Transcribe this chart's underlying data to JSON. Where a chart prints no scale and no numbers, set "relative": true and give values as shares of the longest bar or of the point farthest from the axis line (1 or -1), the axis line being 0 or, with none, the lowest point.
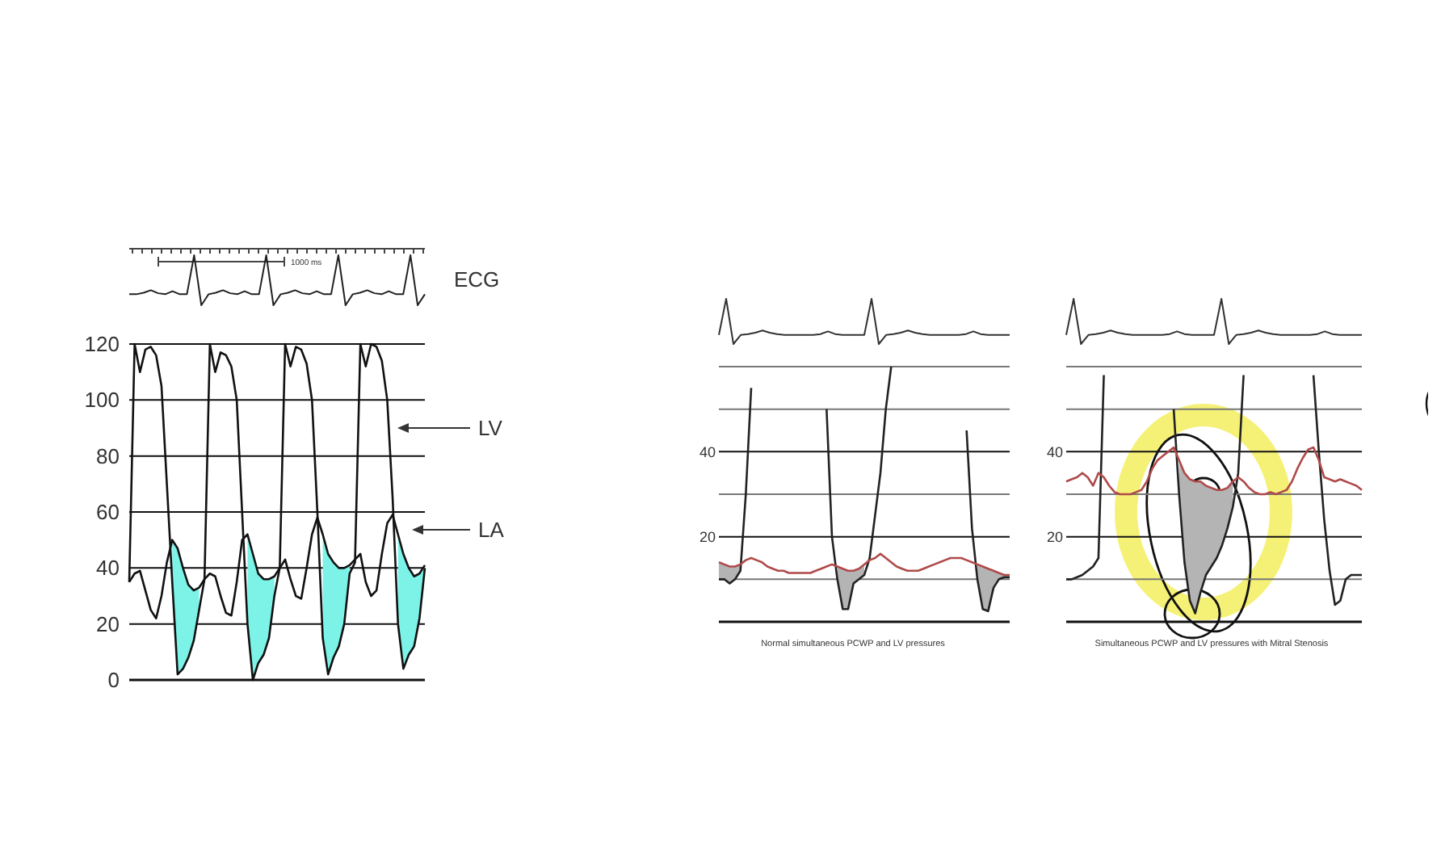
{
  "chart_data": [
    {
      "type": "line",
      "relative": true,
      "annotations": [
        "1000 ms"
      ],
      "categories": [
        null,
        null,
        null,
        null,
        null,
        null,
        null,
        null,
        null,
        null,
        null,
        null,
        null,
        null,
        null,
        null,
        null,
        null,
        null,
        null,
        null,
        null,
        null,
        null,
        null,
        null,
        null,
        null,
        null,
        null,
        null,
        null,
        null,
        null,
        null,
        null,
        null,
        null,
        null,
        null,
        null,
        null
      ],
      "series": [
        {
          "name": "ECG",
          "color": "#222222",
          "values": [
            0.22,
            0.22,
            0.25,
            0.3,
            0.24,
            0.22,
            0.28,
            0.22,
            0.22,
            1,
            0,
            0.22,
            0.25,
            0.3,
            0.24,
            0.22,
            0.28,
            0.22,
            0.22,
            1,
            0,
            0.22,
            0.25,
            0.3,
            0.24,
            0.22,
            0.28,
            0.22,
            0.22,
            1,
            0,
            0.22,
            0.25,
            0.3,
            0.24,
            0.22,
            0.28,
            0.22,
            0.22,
            1,
            0,
            0.22
          ]
        }
      ]
    },
    {
      "type": "line",
      "categories": [
        null,
        null,
        null,
        null,
        null,
        null,
        null,
        null,
        null,
        null,
        null,
        null,
        null,
        null,
        null,
        null,
        null,
        null,
        null,
        null,
        null,
        null,
        null,
        null,
        null,
        null,
        null,
        null,
        null,
        null,
        null,
        null,
        null,
        null,
        null,
        null,
        null,
        null,
        null,
        null,
        null,
        null,
        null,
        null,
        null,
        null,
        null,
        null,
        null,
        null,
        null,
        null,
        null,
        null,
        null,
        null
      ],
      "ylim": [
        0,
        120
      ],
      "yticks": [
        0,
        20,
        40,
        60,
        80,
        100,
        120
      ],
      "grid": "y",
      "series": [
        {
          "name": "LV",
          "color": "#111111",
          "values": [
            35,
            120,
            110,
            118,
            119,
            116,
            105,
            70,
            35,
            2,
            4,
            8,
            14,
            25,
            36,
            120,
            110,
            117,
            116,
            112,
            100,
            60,
            20,
            0,
            6,
            9,
            15,
            30,
            40,
            120,
            112,
            119,
            118,
            113,
            100,
            60,
            15,
            2,
            8,
            12,
            20,
            38,
            42,
            120,
            112,
            120,
            119,
            114,
            100,
            65,
            20,
            4,
            9,
            12,
            22,
            40
          ]
        },
        {
          "name": "LA",
          "color": "#111111",
          "values": [
            35,
            38,
            39,
            32,
            25,
            22,
            30,
            42,
            50,
            47,
            40,
            34,
            32,
            33,
            36,
            38,
            37,
            30,
            24,
            23,
            35,
            50,
            52,
            45,
            38,
            36,
            36,
            37,
            40,
            43,
            36,
            30,
            29,
            40,
            52,
            58,
            52,
            45,
            42,
            40,
            40,
            41,
            43,
            45,
            35,
            30,
            32,
            45,
            56,
            59,
            52,
            45,
            40,
            37,
            38,
            41
          ],
          "upper": [
            null,
            null,
            null,
            null,
            null,
            null,
            null,
            null,
            50,
            47,
            40,
            34,
            32,
            33,
            null,
            null,
            null,
            null,
            null,
            null,
            null,
            null,
            52,
            45,
            38,
            36,
            36,
            37,
            null,
            null,
            null,
            null,
            null,
            null,
            null,
            null,
            52,
            45,
            42,
            40,
            40,
            41,
            null,
            null,
            null,
            null,
            null,
            null,
            null,
            null,
            52,
            45,
            40,
            37,
            38,
            41
          ],
          "lower": [
            null,
            null,
            null,
            null,
            null,
            null,
            null,
            null,
            35,
            2,
            4,
            8,
            14,
            25,
            null,
            null,
            null,
            null,
            null,
            null,
            null,
            null,
            20,
            0,
            6,
            9,
            15,
            30,
            null,
            null,
            null,
            null,
            null,
            null,
            null,
            null,
            15,
            2,
            8,
            12,
            20,
            38,
            null,
            null,
            null,
            null,
            null,
            null,
            null,
            null,
            20,
            4,
            9,
            12,
            22,
            40
          ]
        }
      ]
    },
    {
      "type": "line",
      "relative": true,
      "categories": [
        null,
        null,
        null,
        null,
        null,
        null,
        null,
        null,
        null,
        null,
        null,
        null,
        null,
        null,
        null,
        null,
        null,
        null,
        null,
        null,
        null,
        null,
        null,
        null,
        null,
        null,
        null,
        null,
        null,
        null,
        null,
        null,
        null,
        null,
        null,
        null,
        null,
        null,
        null,
        null,
        null
      ],
      "series": [
        {
          "color": "#333333",
          "values": [
            0.2,
            1,
            0,
            0.2,
            0.22,
            0.25,
            0.3,
            0.25,
            0.22,
            0.2,
            0.2,
            0.2,
            0.2,
            0.2,
            0.22,
            0.28,
            0.22,
            0.2,
            0.2,
            0.2,
            0.2,
            1,
            0,
            0.2,
            0.22,
            0.25,
            0.3,
            0.25,
            0.22,
            0.2,
            0.2,
            0.2,
            0.2,
            0.2,
            0.22,
            0.28,
            0.22,
            0.2,
            0.2,
            0.2,
            0.2
          ]
        }
      ]
    },
    {
      "type": "line",
      "annotations": [
        "Normal simultaneous PCWP and LV pressures"
      ],
      "categories": [
        null,
        null,
        null,
        null,
        null,
        null,
        null,
        null,
        null,
        null,
        null,
        null,
        null,
        null,
        null,
        null,
        null,
        null,
        null,
        null,
        null,
        null,
        null,
        null,
        null,
        null,
        null,
        null,
        null,
        null,
        null,
        null,
        null,
        null,
        null,
        null,
        null,
        null,
        null,
        null,
        null,
        null,
        null,
        null,
        null,
        null,
        null,
        null,
        null,
        null,
        null,
        null,
        null,
        null,
        null
      ],
      "ylim": [
        0,
        60
      ],
      "yticks": [
        {
          "value": 0,
          "label": null
        },
        {
          "value": 10,
          "label": null
        },
        20,
        {
          "value": 30,
          "label": null
        },
        40,
        {
          "value": 50,
          "label": null
        },
        {
          "value": 60,
          "label": null
        }
      ],
      "grid": "y",
      "series": [
        {
          "color": "#222222",
          "values": [
            10,
            10,
            9,
            10,
            12,
            30,
            55,
            null,
            null,
            null,
            null,
            null,
            null,
            null,
            null,
            null,
            null,
            null,
            null,
            null,
            50,
            20,
            10,
            3,
            3,
            9,
            10,
            11,
            15,
            25,
            35,
            50,
            60,
            null,
            null,
            null,
            null,
            null,
            null,
            null,
            null,
            null,
            null,
            null,
            null,
            null,
            45,
            22,
            10,
            3,
            2.5,
            8,
            10,
            10.5,
            10.5
          ]
        },
        {
          "color": "#b04a4a",
          "values": [
            14,
            13.5,
            13,
            13,
            13.5,
            14.5,
            15,
            14.5,
            14,
            13,
            12.5,
            12,
            12,
            11.5,
            11.5,
            11.5,
            11.5,
            11.5,
            12,
            12.5,
            13,
            13.5,
            13,
            12.5,
            12,
            12,
            12.5,
            13.5,
            14.5,
            15,
            16,
            15,
            14,
            13,
            12.5,
            12,
            12,
            12,
            12.5,
            13,
            13.5,
            14,
            14.5,
            15,
            15,
            15,
            14.5,
            14,
            13.5,
            13,
            12.5,
            12,
            11.5,
            11,
            11
          ],
          "upper": [
            14,
            13.5,
            13,
            13,
            13.5,
            null,
            null,
            null,
            null,
            null,
            null,
            null,
            null,
            null,
            null,
            null,
            null,
            null,
            null,
            null,
            null,
            null,
            13,
            12.5,
            12,
            12,
            12.5,
            13.5,
            null,
            null,
            null,
            null,
            null,
            null,
            null,
            null,
            null,
            null,
            null,
            null,
            null,
            null,
            null,
            null,
            null,
            null,
            null,
            null,
            13.5,
            13,
            12.5,
            12,
            11.5,
            11,
            11
          ],
          "lower": [
            10,
            10,
            9,
            10,
            12,
            null,
            null,
            null,
            null,
            null,
            null,
            null,
            null,
            null,
            null,
            null,
            null,
            null,
            null,
            null,
            null,
            null,
            10,
            3,
            3,
            9,
            10,
            11,
            null,
            null,
            null,
            null,
            null,
            null,
            null,
            null,
            null,
            null,
            null,
            null,
            null,
            null,
            null,
            null,
            null,
            null,
            null,
            null,
            10,
            3,
            2.5,
            8,
            10,
            10.5,
            10.5
          ]
        }
      ]
    },
    {
      "type": "line",
      "relative": true,
      "categories": [
        null,
        null,
        null,
        null,
        null,
        null,
        null,
        null,
        null,
        null,
        null,
        null,
        null,
        null,
        null,
        null,
        null,
        null,
        null,
        null,
        null,
        null,
        null,
        null,
        null,
        null,
        null,
        null,
        null,
        null,
        null,
        null,
        null,
        null,
        null,
        null,
        null,
        null,
        null,
        null,
        null
      ],
      "series": [
        {
          "color": "#333333",
          "values": [
            0.2,
            1,
            0,
            0.2,
            0.22,
            0.25,
            0.3,
            0.25,
            0.22,
            0.2,
            0.2,
            0.2,
            0.2,
            0.2,
            0.22,
            0.28,
            0.22,
            0.2,
            0.2,
            0.2,
            0.2,
            1,
            0,
            0.2,
            0.22,
            0.25,
            0.3,
            0.25,
            0.22,
            0.2,
            0.2,
            0.2,
            0.2,
            0.2,
            0.22,
            0.28,
            0.22,
            0.2,
            0.2,
            0.2,
            0.2
          ]
        }
      ]
    },
    {
      "type": "line",
      "annotations": [
        "Simultaneous PCWP and LV pressures with Mitral Stenosis"
      ],
      "categories": [
        null,
        null,
        null,
        null,
        null,
        null,
        null,
        null,
        null,
        null,
        null,
        null,
        null,
        null,
        null,
        null,
        null,
        null,
        null,
        null,
        null,
        null,
        null,
        null,
        null,
        null,
        null,
        null,
        null,
        null,
        null,
        null,
        null,
        null,
        null,
        null,
        null,
        null,
        null,
        null,
        null,
        null,
        null,
        null,
        null,
        null,
        null,
        null,
        null,
        null,
        null,
        null,
        null,
        null,
        null,
        null
      ],
      "ylim": [
        0,
        60
      ],
      "yticks": [
        {
          "value": 0,
          "label": null
        },
        {
          "value": 10,
          "label": null
        },
        20,
        {
          "value": 30,
          "label": null
        },
        40,
        {
          "value": 50,
          "label": null
        },
        {
          "value": 60,
          "label": null
        }
      ],
      "grid": "y",
      "series": [
        {
          "color": "#222222",
          "values": [
            10,
            10,
            10.5,
            11,
            12,
            13,
            15,
            58,
            null,
            null,
            null,
            null,
            null,
            null,
            null,
            null,
            null,
            null,
            null,
            null,
            50,
            30,
            14,
            5,
            2,
            7,
            11,
            13,
            15,
            18,
            22,
            27,
            35,
            58,
            null,
            null,
            null,
            null,
            null,
            null,
            null,
            null,
            null,
            null,
            null,
            null,
            58,
            40,
            24,
            12,
            4,
            5,
            10,
            11,
            11,
            11
          ]
        },
        {
          "color": "#b04a4a",
          "values": [
            33,
            33.5,
            34,
            35,
            34,
            32,
            35,
            34,
            32,
            30.5,
            30,
            30,
            30,
            30.5,
            31,
            33,
            36,
            38,
            39,
            40,
            41,
            38,
            35,
            33.5,
            33,
            33,
            32,
            31.5,
            31,
            31,
            31.5,
            33,
            34,
            33,
            31.5,
            30.5,
            30,
            30,
            30.5,
            30,
            30.5,
            31,
            33,
            36,
            38.5,
            40.5,
            41,
            38,
            34,
            33.5,
            33,
            33.5,
            33,
            32.5,
            32,
            31
          ],
          "upper": [
            null,
            null,
            null,
            null,
            null,
            null,
            null,
            null,
            null,
            null,
            null,
            null,
            null,
            null,
            null,
            null,
            null,
            null,
            null,
            null,
            null,
            38,
            35,
            33.5,
            33,
            33,
            32,
            31.5,
            31,
            31,
            31.5,
            33,
            null,
            null,
            null,
            null,
            null,
            null,
            null,
            null,
            null,
            null,
            null,
            null,
            null,
            null,
            null,
            null,
            null,
            null,
            null,
            null,
            null,
            null,
            null,
            null
          ],
          "lower": [
            null,
            null,
            null,
            null,
            null,
            null,
            null,
            null,
            null,
            null,
            null,
            null,
            null,
            null,
            null,
            null,
            null,
            null,
            null,
            null,
            null,
            30,
            14,
            5,
            2,
            7,
            11,
            13,
            15,
            18,
            22,
            27,
            null,
            null,
            null,
            null,
            null,
            null,
            null,
            null,
            null,
            null,
            null,
            null,
            null,
            null,
            null,
            null,
            null,
            null,
            null,
            null,
            null,
            null,
            null,
            null
          ]
        }
      ]
    }
  ]
}
